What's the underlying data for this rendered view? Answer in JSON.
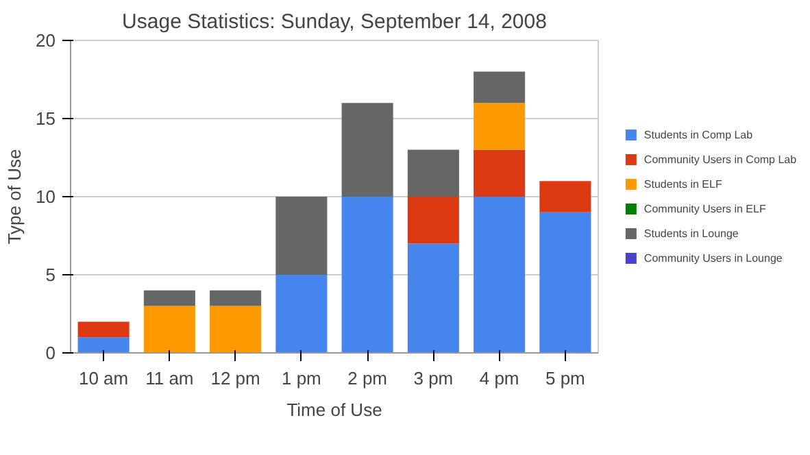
{
  "chart_data": {
    "type": "bar",
    "title": "Usage Statistics: Sunday, September 14, 2008",
    "xlabel": "Time of Use",
    "ylabel": "Type of Use",
    "categories": [
      "10 am",
      "11 am",
      "12 pm",
      "1 pm",
      "2 pm",
      "3 pm",
      "4 pm",
      "5 pm"
    ],
    "stacked": true,
    "ylim": [
      0,
      20
    ],
    "yticks": [
      0,
      5,
      10,
      15,
      20
    ],
    "grid": "y",
    "legend": "right",
    "series": [
      {
        "name": "Students in Comp Lab",
        "color": "#4684ee",
        "values": [
          1,
          0,
          0,
          5,
          10,
          7,
          10,
          9
        ]
      },
      {
        "name": "Community Users in Comp Lab",
        "color": "#dc3912",
        "values": [
          1,
          0,
          0,
          0,
          0,
          3,
          3,
          2
        ]
      },
      {
        "name": "Students in ELF",
        "color": "#ff9900",
        "values": [
          0,
          3,
          3,
          0,
          0,
          0,
          3,
          0
        ]
      },
      {
        "name": "Community Users in ELF",
        "color": "#008000",
        "values": [
          0,
          0,
          0,
          0,
          0,
          0,
          0,
          0
        ]
      },
      {
        "name": "Students in Lounge",
        "color": "#666666",
        "values": [
          0,
          1,
          1,
          5,
          6,
          3,
          2,
          0
        ]
      },
      {
        "name": "Community Users in Lounge",
        "color": "#4942cc",
        "values": [
          0,
          0,
          0,
          0,
          0,
          0,
          0,
          0
        ]
      }
    ]
  }
}
